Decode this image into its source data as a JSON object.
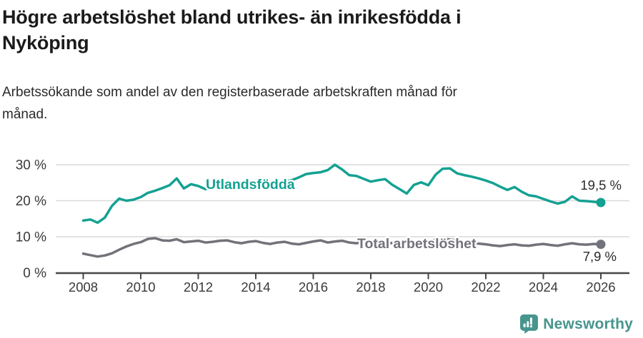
{
  "header": {
    "title_line1": "Högre arbetslöshet bland utrikes- än inrikesfödda i",
    "title_line2": "Nyköping",
    "subtitle_line1": "Arbetssökande som andel av den registerbaserade arbetskraften månad för",
    "subtitle_line2": "månad."
  },
  "footer": {
    "brand": "Newsworthy",
    "brand_color": "#46958e",
    "logo_icon": "newsworthy-pin-barchart-icon"
  },
  "chart_data": {
    "type": "line",
    "title": "Högre arbetslöshet bland utrikes- än inrikesfödda i Nyköping",
    "subtitle": "Arbetssökande som andel av den registerbaserade arbetskraften månad för månad.",
    "grid": "horizontal-only",
    "legend_position": "inline-labels-on-lines",
    "x_start_year": 2008,
    "x_step_years": 0.25,
    "x_tick_labels": [
      "2008",
      "2010",
      "2012",
      "2014",
      "2016",
      "2018",
      "2020",
      "2022",
      "2024",
      "2026"
    ],
    "x_tick_years": [
      2008,
      2010,
      2012,
      2014,
      2016,
      2018,
      2020,
      2022,
      2024,
      2026
    ],
    "y_ticks": [
      {
        "value": 0,
        "label": "0 %"
      },
      {
        "value": 10,
        "label": "10 %"
      },
      {
        "value": 20,
        "label": "20 %"
      },
      {
        "value": 30,
        "label": "30 %"
      }
    ],
    "ylim": [
      0,
      33
    ],
    "colors": {
      "grid": "#d9d9d9",
      "axis": "#474747",
      "axis_text": "#3a3a3a",
      "value_label_text": "#2a2a2a"
    },
    "series": [
      {
        "name": "Utlandsfödda",
        "color": "#14a192",
        "end_label": "19,5 %",
        "end_value": 19.5,
        "values": [
          14.5,
          14.8,
          13.9,
          15.3,
          18.6,
          20.6,
          20.0,
          20.3,
          21.0,
          22.2,
          22.8,
          23.5,
          24.3,
          26.2,
          23.4,
          24.6,
          24.1,
          23.2,
          23.6,
          23.7,
          23.9,
          24.1,
          24.3,
          24.7,
          24.9,
          25.2,
          24.7,
          25.1,
          25.3,
          25.7,
          26.5,
          27.4,
          27.7,
          27.9,
          28.5,
          30.0,
          28.7,
          27.1,
          26.9,
          26.1,
          25.3,
          25.7,
          26.0,
          24.4,
          23.2,
          22.0,
          24.4,
          25.1,
          24.3,
          27.2,
          28.9,
          29.0,
          27.6,
          27.1,
          26.7,
          26.2,
          25.6,
          24.9,
          23.9,
          23.0,
          23.8,
          22.5,
          21.5,
          21.2,
          20.5,
          19.8,
          19.2,
          19.7,
          21.2,
          20.0,
          19.9,
          19.7,
          19.5
        ]
      },
      {
        "name": "Total arbetslöshet",
        "color": "#72727a",
        "end_label": "7,9 %",
        "end_value": 7.9,
        "values": [
          5.3,
          4.9,
          4.5,
          4.8,
          5.4,
          6.4,
          7.3,
          8.0,
          8.5,
          9.4,
          9.6,
          9.0,
          8.9,
          9.3,
          8.5,
          8.7,
          8.9,
          8.4,
          8.6,
          8.9,
          9.0,
          8.5,
          8.2,
          8.6,
          8.8,
          8.3,
          8.0,
          8.4,
          8.6,
          8.1,
          7.9,
          8.3,
          8.7,
          9.0,
          8.4,
          8.7,
          8.9,
          8.4,
          8.2,
          8.6,
          8.6,
          8.2,
          8.0,
          8.3,
          8.1,
          7.6,
          7.8,
          8.1,
          8.3,
          9.3,
          9.5,
          9.2,
          9.0,
          8.6,
          8.3,
          8.1,
          7.9,
          7.6,
          7.4,
          7.7,
          7.9,
          7.6,
          7.5,
          7.8,
          8.0,
          7.7,
          7.5,
          7.9,
          8.2,
          7.9,
          7.8,
          8.0,
          7.9
        ]
      }
    ]
  }
}
